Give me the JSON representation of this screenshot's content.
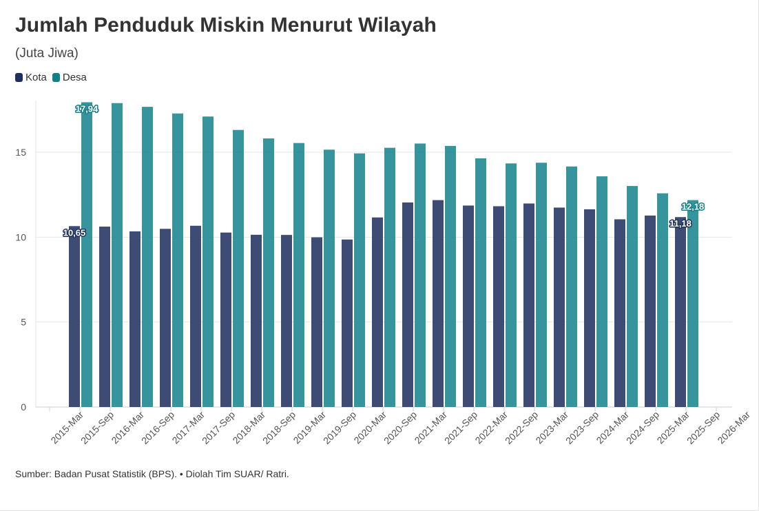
{
  "header": {
    "title": "Jumlah Penduduk Miskin Menurut Wilayah",
    "subtitle": "(Juta Jiwa)"
  },
  "legend": {
    "items": [
      {
        "label": "Kota",
        "color": "#1f2f5e"
      },
      {
        "label": "Desa",
        "color": "#137f88"
      }
    ]
  },
  "footer": {
    "source": "Sumber: Badan Pusat Statistik (BPS). • Diolah Tim SUAR/ Ratri."
  },
  "chart_data": {
    "type": "bar",
    "categories": [
      "2015-Mar",
      "2015-Sep",
      "2016-Mar",
      "2016-Sep",
      "2017-Mar",
      "2017-Sep",
      "2018-Mar",
      "2018-Sep",
      "2019-Mar",
      "2019-Sep",
      "2020-Mar",
      "2020-Sep",
      "2021-Mar",
      "2021-Sep",
      "2022-Mar",
      "2022-Sep",
      "2023-Mar",
      "2023-Sep",
      "2024-Mar",
      "2024-Sep",
      "2025-Mar",
      "2025-Sep",
      "2026-Mar"
    ],
    "series": [
      {
        "name": "Kota",
        "color": "#2e3c68",
        "values": [
          10.65,
          10.62,
          10.34,
          10.49,
          10.67,
          10.27,
          10.14,
          10.13,
          9.99,
          9.86,
          11.16,
          12.04,
          12.18,
          11.86,
          11.82,
          11.98,
          11.74,
          11.64,
          11.05,
          11.27,
          11.18,
          null,
          null
        ]
      },
      {
        "name": "Desa",
        "color": "#1a8590",
        "values": [
          17.94,
          17.89,
          17.67,
          17.28,
          17.1,
          16.31,
          15.81,
          15.54,
          15.15,
          14.93,
          15.26,
          15.51,
          15.37,
          14.64,
          14.34,
          14.38,
          14.16,
          13.58,
          13.01,
          12.58,
          12.18,
          null,
          null
        ]
      }
    ],
    "data_labels": [
      {
        "series": "Kota",
        "index": 0,
        "text": "10,65"
      },
      {
        "series": "Desa",
        "index": 0,
        "text": "17,94"
      },
      {
        "series": "Kota",
        "index": 20,
        "text": "11,18"
      },
      {
        "series": "Desa",
        "index": 20,
        "text": "12,18"
      }
    ],
    "y_ticks": [
      "0",
      "5",
      "10",
      "15"
    ],
    "ylim": [
      0,
      18
    ],
    "grid": true,
    "legend_position": "top-left"
  }
}
